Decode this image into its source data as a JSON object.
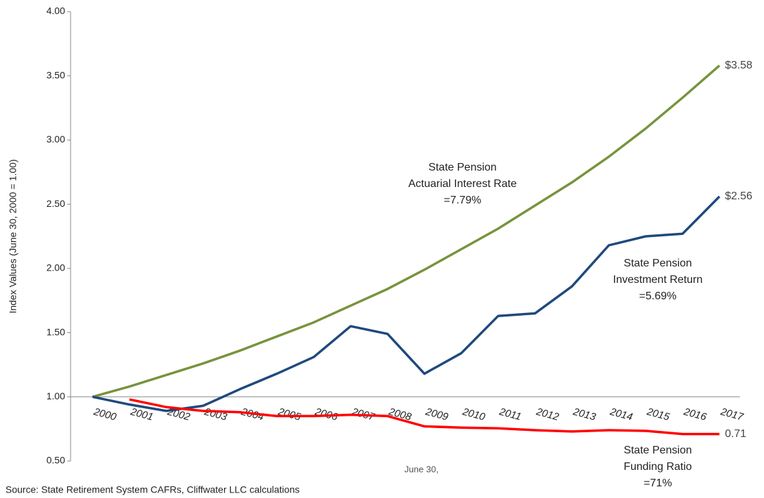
{
  "chart_data": {
    "type": "line",
    "y_label": "Index Values (June 30, 2000 = 1.00)",
    "x_label": "June 30,",
    "source": "Source: State Retirement System CAFRs, Cliffwater LLC calculations",
    "categories": [
      "2000",
      "2001",
      "2002",
      "2003",
      "2004",
      "2005",
      "2006",
      "2007",
      "2008",
      "2009",
      "2010",
      "2011",
      "2012",
      "2013",
      "2014",
      "2015",
      "2016",
      "2017"
    ],
    "ylim": [
      0.5,
      4.0
    ],
    "yticks": [
      {
        "value": 0.5,
        "label": "0.50"
      },
      {
        "value": 1.0,
        "label": "1.00"
      },
      {
        "value": 1.5,
        "label": "1.50"
      },
      {
        "value": 2.0,
        "label": "2.00"
      },
      {
        "value": 2.5,
        "label": "2.50"
      },
      {
        "value": 3.0,
        "label": "3.00"
      },
      {
        "value": 3.5,
        "label": "3.50"
      },
      {
        "value": 4.0,
        "label": "4.00"
      }
    ],
    "x_axis_at": 1.0,
    "series": [
      {
        "color": "#77933c",
        "label": [
          "State Pension",
          "Actuarial Interest Rate",
          "=7.79%"
        ],
        "values": [
          1.0,
          1.08,
          1.17,
          1.26,
          1.36,
          1.47,
          1.58,
          1.71,
          1.84,
          1.99,
          2.15,
          2.31,
          2.49,
          2.67,
          2.87,
          3.09,
          3.33,
          3.58
        ],
        "value_labels": [
          null,
          null,
          null,
          null,
          null,
          null,
          null,
          null,
          null,
          null,
          null,
          null,
          null,
          null,
          null,
          null,
          null,
          "$3.58"
        ]
      },
      {
        "color": "#1f497d",
        "label": [
          "State Pension",
          "Investment Return",
          "=5.69%"
        ],
        "values": [
          1.0,
          0.94,
          0.89,
          0.93,
          1.06,
          1.18,
          1.31,
          1.55,
          1.49,
          1.18,
          1.34,
          1.63,
          1.65,
          1.86,
          2.18,
          2.25,
          2.27,
          2.56
        ],
        "value_labels": [
          null,
          null,
          null,
          null,
          null,
          null,
          null,
          null,
          null,
          null,
          null,
          null,
          null,
          null,
          null,
          null,
          null,
          "$2.56"
        ]
      },
      {
        "color": "#ff0000",
        "label": [
          "State Pension",
          "Funding Ratio",
          "=71%"
        ],
        "values": [
          null,
          0.98,
          0.92,
          0.89,
          0.88,
          0.85,
          0.85,
          0.86,
          0.85,
          0.77,
          0.76,
          0.755,
          0.74,
          0.73,
          0.74,
          0.735,
          0.71,
          0.71
        ],
        "value_labels": [
          null,
          null,
          null,
          null,
          null,
          null,
          null,
          null,
          null,
          null,
          null,
          null,
          null,
          null,
          null,
          null,
          null,
          "0.71"
        ]
      }
    ]
  }
}
